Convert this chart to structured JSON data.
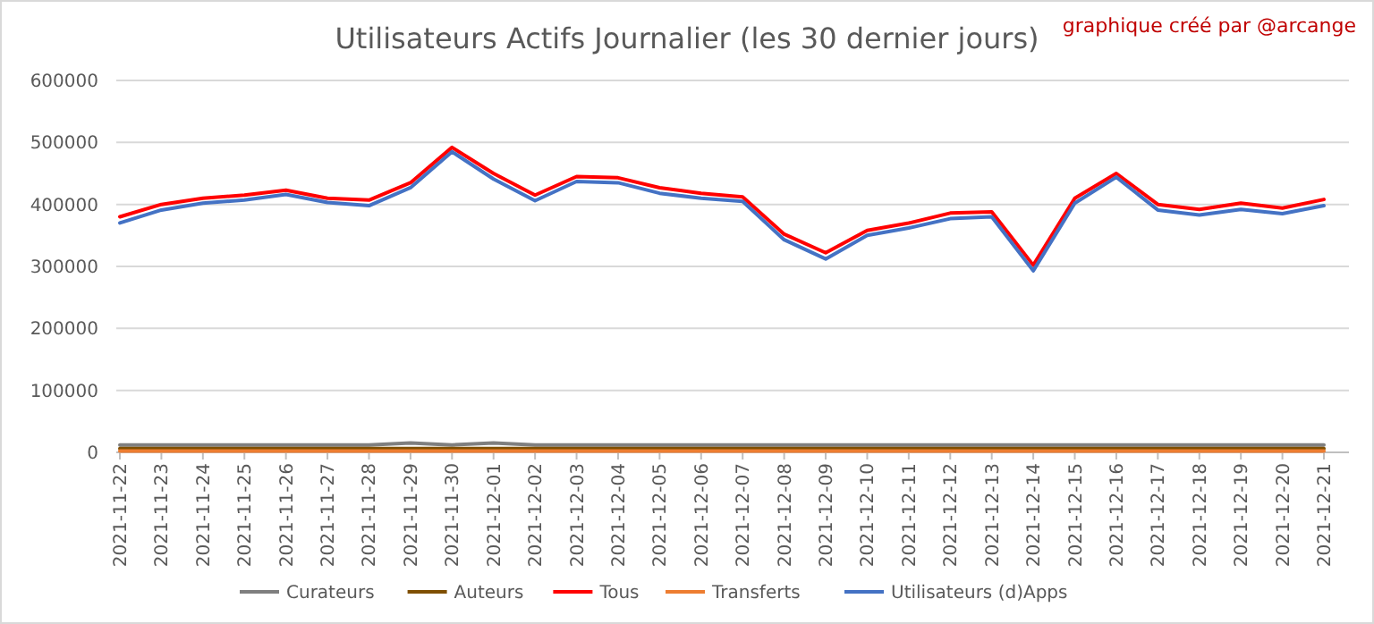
{
  "chart_data": {
    "type": "line",
    "title": "Utilisateurs Actifs Journalier (les 30 dernier jours)",
    "annotations": [
      "graphique créé par @arcange"
    ],
    "categories": [
      "2021-11-22",
      "2021-11-23",
      "2021-11-24",
      "2021-11-25",
      "2021-11-26",
      "2021-11-27",
      "2021-11-28",
      "2021-11-29",
      "2021-11-30",
      "2021-12-01",
      "2021-12-02",
      "2021-12-03",
      "2021-12-04",
      "2021-12-05",
      "2021-12-06",
      "2021-12-07",
      "2021-12-08",
      "2021-12-09",
      "2021-12-10",
      "2021-12-11",
      "2021-12-12",
      "2021-12-13",
      "2021-12-14",
      "2021-12-15",
      "2021-12-16",
      "2021-12-17",
      "2021-12-18",
      "2021-12-19",
      "2021-12-20",
      "2021-12-21"
    ],
    "series": [
      {
        "name": "Curateurs",
        "color": "#7f7f7f",
        "values": [
          12000,
          12000,
          12000,
          12000,
          12000,
          12000,
          12000,
          15000,
          12000,
          15000,
          12000,
          12000,
          12000,
          12000,
          12000,
          12000,
          12000,
          12000,
          12000,
          12000,
          12000,
          12000,
          12000,
          12000,
          12000,
          12000,
          12000,
          12000,
          12000,
          12000
        ]
      },
      {
        "name": "Auteurs",
        "color": "#7f4f00",
        "values": [
          6000,
          6000,
          6000,
          6000,
          6000,
          6000,
          6000,
          6000,
          6000,
          6000,
          6000,
          6000,
          6000,
          6000,
          6000,
          6000,
          6000,
          6000,
          6000,
          6000,
          6000,
          6000,
          6000,
          6000,
          6000,
          6000,
          6000,
          6000,
          6000,
          6000
        ]
      },
      {
        "name": "Tous",
        "color": "#ff0000",
        "values": [
          380000,
          400000,
          410000,
          415000,
          423000,
          410000,
          407000,
          435000,
          492000,
          450000,
          415000,
          445000,
          443000,
          427000,
          418000,
          412000,
          352000,
          322000,
          358000,
          370000,
          386000,
          388000,
          302000,
          410000,
          450000,
          400000,
          392000,
          402000,
          394000,
          408000
        ]
      },
      {
        "name": "Transferts",
        "color": "#ed7d31",
        "values": [
          2000,
          2000,
          2000,
          2000,
          2000,
          2000,
          2000,
          2000,
          2000,
          2000,
          2000,
          2000,
          2000,
          2000,
          2000,
          2000,
          2000,
          2000,
          2000,
          2000,
          2000,
          2000,
          2000,
          2000,
          2000,
          2000,
          2000,
          2000,
          2000,
          2000
        ]
      },
      {
        "name": "Utilisateurs (d)Apps",
        "color": "#4472c4",
        "values": [
          370000,
          391000,
          402000,
          407000,
          416000,
          403000,
          398000,
          427000,
          485000,
          441000,
          406000,
          437000,
          435000,
          418000,
          410000,
          405000,
          343000,
          312000,
          350000,
          362000,
          377000,
          380000,
          293000,
          402000,
          444000,
          391000,
          383000,
          392000,
          385000,
          398000
        ]
      }
    ],
    "ylim": [
      0,
      600000
    ],
    "yticks": [
      0,
      100000,
      200000,
      300000,
      400000,
      500000,
      600000
    ],
    "grid": "y",
    "legend": "bottom",
    "marker": "none",
    "line_style": "solid"
  }
}
